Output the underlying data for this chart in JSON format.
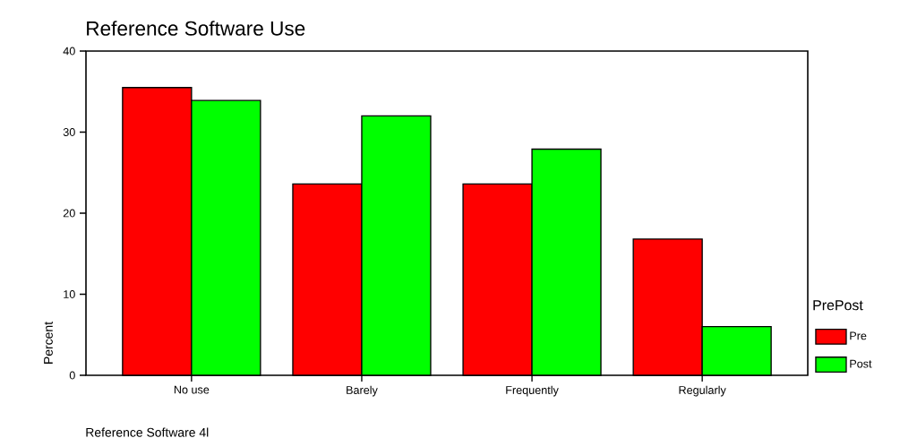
{
  "chart_data": {
    "type": "bar",
    "title": "Reference Software  Use",
    "xlabel": "Reference Software 4l",
    "ylabel": "Percent",
    "legend_title": "PrePost",
    "categories": [
      "No use",
      "Barely",
      "Frequently",
      "Regularly"
    ],
    "series": [
      {
        "name": "Pre",
        "color": "#ff0000",
        "values": [
          35.5,
          23.6,
          23.6,
          16.8
        ]
      },
      {
        "name": "Post",
        "color": "#00ff00",
        "values": [
          33.9,
          32.0,
          27.9,
          6.0
        ]
      }
    ],
    "ylim": [
      0,
      40
    ],
    "yticks": [
      0,
      10,
      20,
      30,
      40
    ],
    "grid": false,
    "legend": "right"
  }
}
